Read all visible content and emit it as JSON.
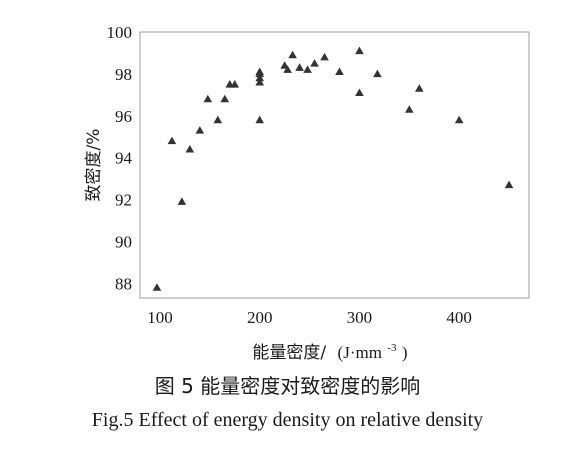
{
  "chart_data": {
    "type": "scatter",
    "xlabel_main": "能量密度/",
    "xlabel_unit": "(J·mm",
    "xlabel_sup": "-3",
    "xlabel_close": ")",
    "ylabel": "致密度/%",
    "xlim": [
      80,
      470
    ],
    "ylim": [
      87.3,
      100
    ],
    "xticks": [
      "100",
      "200",
      "300",
      "400"
    ],
    "yticks": [
      "88",
      "90",
      "92",
      "94",
      "96",
      "98",
      "100"
    ],
    "grid": false,
    "marker": "triangle",
    "marker_color": "#333333",
    "points": [
      {
        "x": 97,
        "y": 87.8
      },
      {
        "x": 112,
        "y": 94.8
      },
      {
        "x": 122,
        "y": 91.9
      },
      {
        "x": 130,
        "y": 94.4
      },
      {
        "x": 140,
        "y": 95.3
      },
      {
        "x": 148,
        "y": 96.8
      },
      {
        "x": 158,
        "y": 95.8
      },
      {
        "x": 165,
        "y": 96.8
      },
      {
        "x": 170,
        "y": 97.5
      },
      {
        "x": 175,
        "y": 97.5
      },
      {
        "x": 200,
        "y": 95.8
      },
      {
        "x": 200,
        "y": 97.6
      },
      {
        "x": 200,
        "y": 97.8
      },
      {
        "x": 200,
        "y": 98.0
      },
      {
        "x": 200,
        "y": 98.1
      },
      {
        "x": 225,
        "y": 98.4
      },
      {
        "x": 228,
        "y": 98.2
      },
      {
        "x": 233,
        "y": 98.9
      },
      {
        "x": 240,
        "y": 98.3
      },
      {
        "x": 248,
        "y": 98.2
      },
      {
        "x": 255,
        "y": 98.5
      },
      {
        "x": 265,
        "y": 98.8
      },
      {
        "x": 280,
        "y": 98.1
      },
      {
        "x": 300,
        "y": 99.1
      },
      {
        "x": 300,
        "y": 97.1
      },
      {
        "x": 318,
        "y": 98.0
      },
      {
        "x": 350,
        "y": 96.3
      },
      {
        "x": 360,
        "y": 97.3
      },
      {
        "x": 400,
        "y": 95.8
      },
      {
        "x": 450,
        "y": 92.7
      }
    ]
  },
  "caption_cn": "图 5  能量密度对致密度的影响",
  "caption_en": "Fig.5   Effect of energy density on relative density"
}
